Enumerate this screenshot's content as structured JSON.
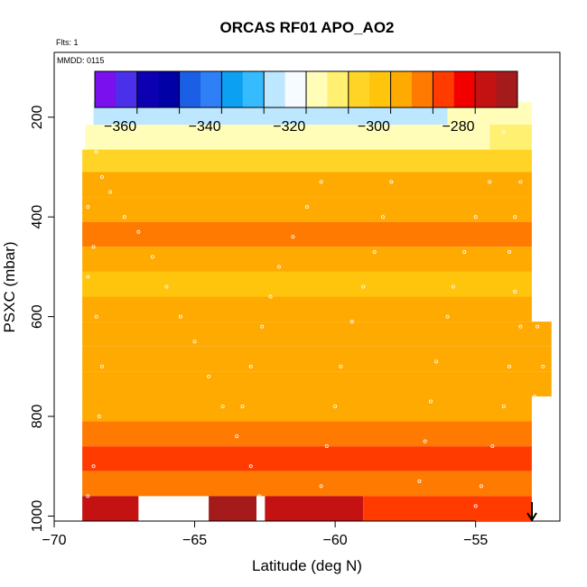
{
  "chart_data": {
    "type": "heatmap",
    "title": "ORCAS RF01 APO_AO2",
    "flights_label": "Flts: 1",
    "date_label": "MMDD: 0115",
    "xlabel": "Latitude (deg N)",
    "ylabel": "PSXC (mbar)",
    "xlim": [
      -70,
      -52
    ],
    "ylim_reversed": [
      1010,
      70
    ],
    "x_ticks": [
      -70,
      -65,
      -60,
      -55
    ],
    "y_ticks": [
      200,
      400,
      600,
      800,
      1000
    ],
    "colorbar": {
      "range": [
        -366,
        -266
      ],
      "ticks": [
        -360,
        -340,
        -320,
        -300,
        -280
      ],
      "colors": [
        "#7a10ee",
        "#4a30ea",
        "#0c00b2",
        "#0000a6",
        "#1b5fe6",
        "#2f7ff7",
        "#0ba0f2",
        "#36bbff",
        "#bde6ff",
        "#f6fbff",
        "#fffdb8",
        "#fff071",
        "#ffd426",
        "#ffc40c",
        "#ffaa00",
        "#ff7a00",
        "#ff3b00",
        "#f20000",
        "#c41212",
        "#a51b1b"
      ]
    },
    "cells": [
      {
        "lat": [
          -68.6,
          -56.0
        ],
        "p": [
          170,
          215
        ],
        "value": -325
      },
      {
        "lat": [
          -56.0,
          -53.0
        ],
        "p": [
          170,
          215
        ],
        "value": -315
      },
      {
        "lat": [
          -68.9,
          -54.5
        ],
        "p": [
          215,
          265
        ],
        "value": -315
      },
      {
        "lat": [
          -54.5,
          -53.0
        ],
        "p": [
          215,
          265
        ],
        "value": -308
      },
      {
        "lat": [
          -69.0,
          -53.0
        ],
        "p": [
          265,
          310
        ],
        "value": -304
      },
      {
        "lat": [
          -69.0,
          -53.0
        ],
        "p": [
          310,
          360
        ],
        "value": -295
      },
      {
        "lat": [
          -69.0,
          -53.0
        ],
        "p": [
          360,
          410
        ],
        "value": -293
      },
      {
        "lat": [
          -69.0,
          -53.0
        ],
        "p": [
          410,
          460
        ],
        "value": -291
      },
      {
        "lat": [
          -69.0,
          -53.0
        ],
        "p": [
          460,
          510
        ],
        "value": -293
      },
      {
        "lat": [
          -69.0,
          -53.0
        ],
        "p": [
          510,
          560
        ],
        "value": -297
      },
      {
        "lat": [
          -69.0,
          -53.0
        ],
        "p": [
          560,
          610
        ],
        "value": -296
      },
      {
        "lat": [
          -69.0,
          -52.3
        ],
        "p": [
          610,
          660
        ],
        "value": -295
      },
      {
        "lat": [
          -69.0,
          -52.3
        ],
        "p": [
          660,
          710
        ],
        "value": -294
      },
      {
        "lat": [
          -69.0,
          -52.3
        ],
        "p": [
          710,
          760
        ],
        "value": -296
      },
      {
        "lat": [
          -69.0,
          -53.0
        ],
        "p": [
          760,
          810
        ],
        "value": -292
      },
      {
        "lat": [
          -69.0,
          -53.0
        ],
        "p": [
          810,
          860
        ],
        "value": -288
      },
      {
        "lat": [
          -69.0,
          -53.0
        ],
        "p": [
          860,
          910
        ],
        "value": -286
      },
      {
        "lat": [
          -69.0,
          -53.0
        ],
        "p": [
          910,
          960
        ],
        "value": -287
      },
      {
        "lat": [
          -69.0,
          -67.0
        ],
        "p": [
          960,
          1010
        ],
        "value": -276
      },
      {
        "lat": [
          -64.5,
          -62.8
        ],
        "p": [
          960,
          1010
        ],
        "value": -267
      },
      {
        "lat": [
          -62.5,
          -59.0
        ],
        "p": [
          960,
          1010
        ],
        "value": -274
      },
      {
        "lat": [
          -59.0,
          -53.0
        ],
        "p": [
          960,
          1010
        ],
        "value": -285
      }
    ],
    "flight_track": [
      [
        -68.6,
        178
      ],
      [
        -63.5,
        178
      ],
      [
        -61.0,
        178
      ],
      [
        -59.0,
        178
      ],
      [
        -56.0,
        178
      ],
      [
        -55.0,
        200
      ],
      [
        -54.0,
        230
      ],
      [
        -68.5,
        270
      ],
      [
        -68.3,
        320
      ],
      [
        -68.0,
        350
      ],
      [
        -67.5,
        400
      ],
      [
        -67.0,
        430
      ],
      [
        -66.5,
        480
      ],
      [
        -66.0,
        540
      ],
      [
        -65.5,
        600
      ],
      [
        -65.0,
        650
      ],
      [
        -64.5,
        720
      ],
      [
        -64.0,
        780
      ],
      [
        -63.5,
        840
      ],
      [
        -63.0,
        900
      ],
      [
        -62.7,
        960
      ],
      [
        -68.8,
        380
      ],
      [
        -68.6,
        460
      ],
      [
        -68.8,
        520
      ],
      [
        -68.5,
        600
      ],
      [
        -68.3,
        700
      ],
      [
        -68.4,
        800
      ],
      [
        -68.6,
        900
      ],
      [
        -68.8,
        960
      ],
      [
        -60.5,
        330
      ],
      [
        -61.0,
        380
      ],
      [
        -61.5,
        440
      ],
      [
        -62.0,
        500
      ],
      [
        -62.3,
        560
      ],
      [
        -62.6,
        620
      ],
      [
        -63.0,
        700
      ],
      [
        -63.3,
        780
      ],
      [
        -58.0,
        330
      ],
      [
        -58.3,
        400
      ],
      [
        -58.6,
        470
      ],
      [
        -59.0,
        540
      ],
      [
        -59.4,
        610
      ],
      [
        -59.8,
        700
      ],
      [
        -60.0,
        780
      ],
      [
        -60.3,
        860
      ],
      [
        -60.5,
        940
      ],
      [
        -54.5,
        330
      ],
      [
        -55.0,
        400
      ],
      [
        -55.4,
        470
      ],
      [
        -55.8,
        540
      ],
      [
        -56.0,
        600
      ],
      [
        -56.4,
        690
      ],
      [
        -56.6,
        770
      ],
      [
        -56.8,
        850
      ],
      [
        -57.0,
        930
      ],
      [
        -53.4,
        330
      ],
      [
        -53.6,
        400
      ],
      [
        -53.8,
        470
      ],
      [
        -53.6,
        550
      ],
      [
        -53.4,
        620
      ],
      [
        -53.8,
        700
      ],
      [
        -54.0,
        780
      ],
      [
        -54.4,
        860
      ],
      [
        -54.8,
        940
      ],
      [
        -55.0,
        980
      ],
      [
        -52.8,
        620
      ],
      [
        -52.6,
        700
      ],
      [
        -52.9,
        760
      ]
    ]
  }
}
